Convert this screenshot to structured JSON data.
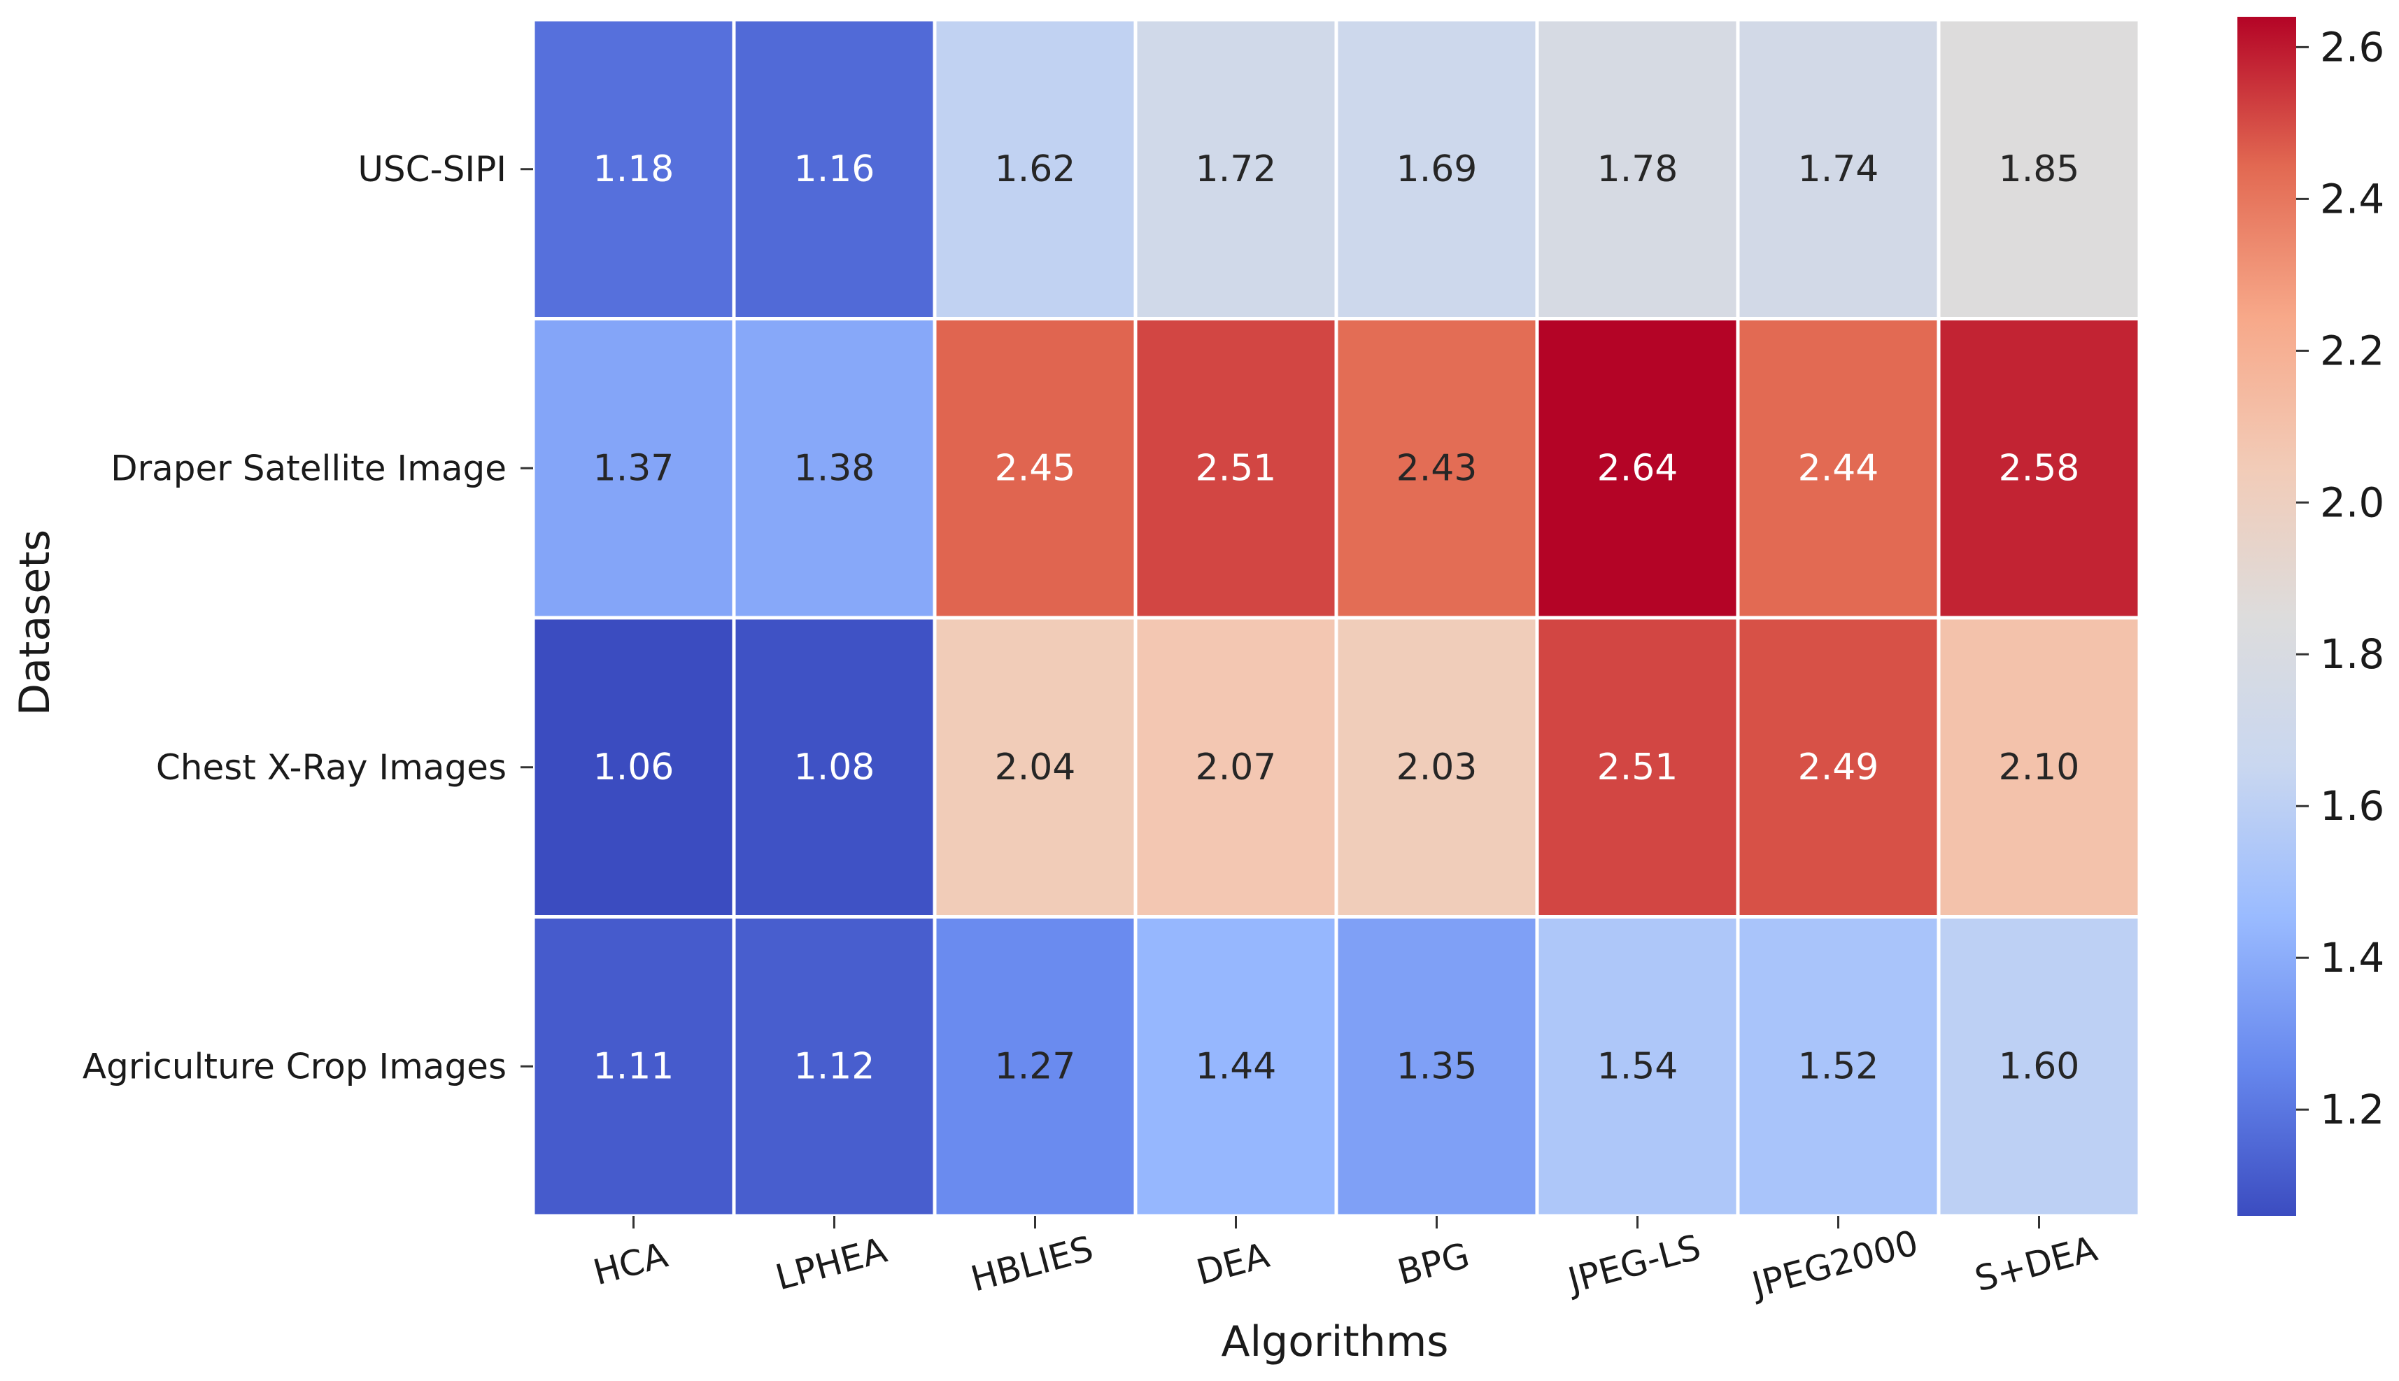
{
  "chart_data": {
    "type": "heatmap",
    "title": "",
    "xlabel": "Algorithms",
    "ylabel": "Datasets",
    "x_categories": [
      "HCA",
      "LPHEA",
      "HBLIES",
      "DEA",
      "BPG",
      "JPEG-LS",
      "JPEG2000",
      "S+DEA"
    ],
    "y_categories": [
      "USC-SIPI",
      "Draper Satellite Image",
      "Chest X-Ray Images",
      "Agriculture Crop Images"
    ],
    "values": [
      [
        1.18,
        1.16,
        1.62,
        1.72,
        1.69,
        1.78,
        1.74,
        1.85
      ],
      [
        1.37,
        1.38,
        2.45,
        2.51,
        2.43,
        2.64,
        2.44,
        2.58
      ],
      [
        1.06,
        1.08,
        2.04,
        2.07,
        2.03,
        2.51,
        2.49,
        2.1
      ],
      [
        1.11,
        1.12,
        1.27,
        1.44,
        1.35,
        1.54,
        1.52,
        1.6
      ]
    ],
    "value_labels": [
      [
        "1.18",
        "1.16",
        "1.62",
        "1.72",
        "1.69",
        "1.78",
        "1.74",
        "1.85"
      ],
      [
        "1.37",
        "1.38",
        "2.45",
        "2.51",
        "2.43",
        "2.64",
        "2.44",
        "2.58"
      ],
      [
        "1.06",
        "1.08",
        "2.04",
        "2.07",
        "2.03",
        "2.51",
        "2.49",
        "2.10"
      ],
      [
        "1.11",
        "1.12",
        "1.27",
        "1.44",
        "1.35",
        "1.54",
        "1.52",
        "1.60"
      ]
    ],
    "colormap": "coolwarm",
    "color_range": [
      1.06,
      2.64
    ],
    "colorbar_ticks": [
      1.2,
      1.4,
      1.6,
      1.8,
      2.0,
      2.2,
      2.4,
      2.6
    ],
    "colorbar_tick_labels": [
      "1.2",
      "1.4",
      "1.6",
      "1.8",
      "2.0",
      "2.2",
      "2.4",
      "2.6"
    ],
    "colorbar_stops": [
      "#3b4cc0",
      "#6788ee",
      "#9abbff",
      "#c9d7f0",
      "#dddcdc",
      "#f2cbb7",
      "#f7a889",
      "#e26952",
      "#b40426"
    ],
    "grid_color": "#ffffff",
    "annotation_dark": "#262626",
    "annotation_light": "#ffffff"
  }
}
